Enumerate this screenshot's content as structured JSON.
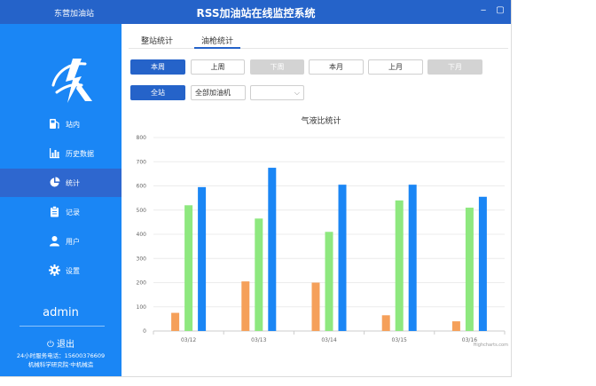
{
  "window": {
    "brand": "东营加油站",
    "title": "RSS加油站在线监控系统",
    "minimize_label": "‒",
    "maximize_label": "▢"
  },
  "sidebar": {
    "items": [
      {
        "label": "站内",
        "icon": "fuel-pump-icon"
      },
      {
        "label": "历史数据",
        "icon": "bar-chart-icon"
      },
      {
        "label": "统计",
        "icon": "pie-chart-icon",
        "active": true
      },
      {
        "label": "记录",
        "icon": "clipboard-icon"
      },
      {
        "label": "用户",
        "icon": "user-icon"
      },
      {
        "label": "设置",
        "icon": "gear-icon"
      }
    ],
    "username": "admin",
    "logout_label": "退出",
    "phone": "24小时服务电话：15600376609",
    "org": "机械科学研究院·中机械造"
  },
  "tabs": [
    {
      "label": "整站统计",
      "active": false
    },
    {
      "label": "油枪统计",
      "active": true
    }
  ],
  "period_buttons": [
    {
      "label": "本周",
      "state": "primary"
    },
    {
      "label": "上周",
      "state": "normal"
    },
    {
      "label": "下周",
      "state": "disabled"
    },
    {
      "label": "本月",
      "state": "normal"
    },
    {
      "label": "上月",
      "state": "normal"
    },
    {
      "label": "下月",
      "state": "disabled"
    }
  ],
  "filters": {
    "scope_label": "全站",
    "machine_select": "全部加油机",
    "gun_select": ""
  },
  "colors": {
    "primary": "#2563c9",
    "sidebar": "#1a86f5",
    "series_orange": "#f5a05a",
    "series_green": "#8ee87f",
    "series_blue": "#1a86f5"
  },
  "chart_data": {
    "type": "bar",
    "title": "气液比统计",
    "categories": [
      "03/12",
      "03/13",
      "03/14",
      "03/15",
      "03/16"
    ],
    "series": [
      {
        "values": [
          75,
          205,
          200,
          65,
          40
        ],
        "color": "#f5a05a"
      },
      {
        "values": [
          520,
          465,
          410,
          540,
          510
        ],
        "color": "#8ee87f"
      },
      {
        "values": [
          595,
          675,
          605,
          605,
          555
        ],
        "color": "#1a86f5"
      }
    ],
    "ylim": [
      0,
      800
    ],
    "yticks": [
      0,
      100,
      200,
      300,
      400,
      500,
      600,
      700,
      800
    ],
    "grid": true,
    "credit": "Highcharts.com"
  }
}
